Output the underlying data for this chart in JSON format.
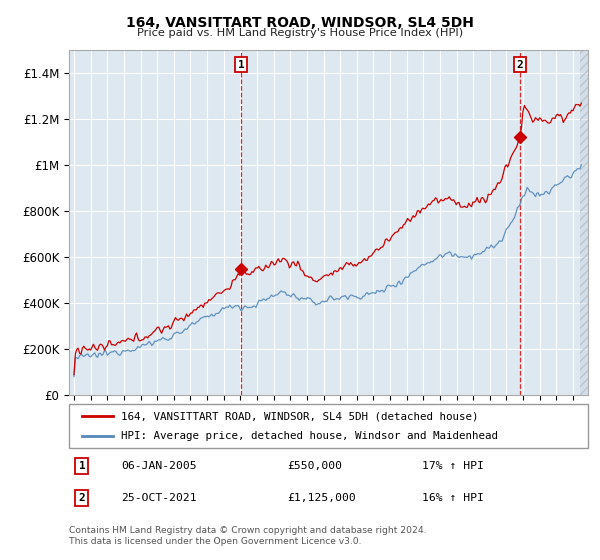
{
  "title": "164, VANSITTART ROAD, WINDSOR, SL4 5DH",
  "subtitle": "Price paid vs. HM Land Registry's House Price Index (HPI)",
  "legend_line1": "164, VANSITTART ROAD, WINDSOR, SL4 5DH (detached house)",
  "legend_line2": "HPI: Average price, detached house, Windsor and Maidenhead",
  "annotation1_label": "1",
  "annotation1_date": "06-JAN-2005",
  "annotation1_price": "£550,000",
  "annotation1_hpi": "17% ↑ HPI",
  "annotation2_label": "2",
  "annotation2_date": "25-OCT-2021",
  "annotation2_price": "£1,125,000",
  "annotation2_hpi": "16% ↑ HPI",
  "footer": "Contains HM Land Registry data © Crown copyright and database right 2024.\nThis data is licensed under the Open Government Licence v3.0.",
  "red_color": "#cc0000",
  "blue_color": "#5588bb",
  "plot_bg_color": "#dde8f0",
  "annotation_box_color": "#cc0000",
  "sale1_yr": 2005.04,
  "sale1_price": 550000,
  "sale2_yr": 2021.81,
  "sale2_price": 1125000,
  "ylim": [
    0,
    1500000
  ],
  "ytick_labels": [
    "£0",
    "£200K",
    "£400K",
    "£600K",
    "£800K",
    "£1M",
    "£1.2M",
    "£1.4M"
  ],
  "xlim_start": 1994.7,
  "xlim_end": 2025.9
}
